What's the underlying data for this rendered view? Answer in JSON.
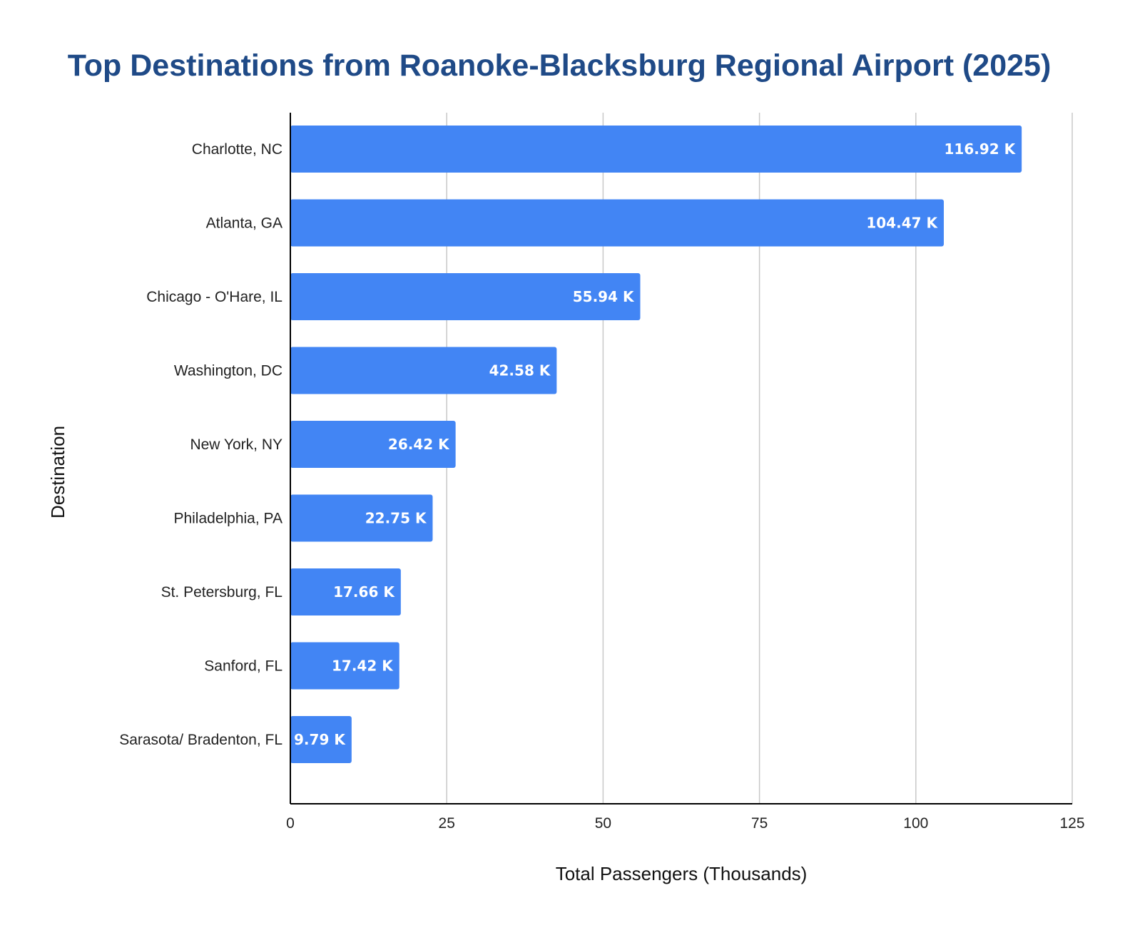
{
  "colors": {
    "title": "#1f4a87",
    "bar": "#4285f4",
    "grid": "#c8c8c8",
    "axis": "#000000",
    "data_label": "#ffffff"
  },
  "chart_data": {
    "type": "bar",
    "orientation": "horizontal",
    "title": "Top Destinations from Roanoke-Blacksburg Regional Airport (2025)",
    "xlabel": "Total Passengers (Thousands)",
    "ylabel": "Destination",
    "categories": [
      "Charlotte, NC",
      "Atlanta, GA",
      "Chicago - O'Hare, IL",
      "Washington, DC",
      "New York, NY",
      "Philadelphia, PA",
      "St. Petersburg, FL",
      "Sanford, FL",
      "Sarasota/ Bradenton, FL"
    ],
    "values": [
      116.92,
      104.47,
      55.94,
      42.58,
      26.42,
      22.75,
      17.66,
      17.42,
      9.79
    ],
    "data_labels": [
      "116.92 K",
      "104.47 K",
      "55.94 K",
      "42.58 K",
      "26.42 K",
      "22.75 K",
      "17.66 K",
      "17.42 K",
      "9.79 K"
    ],
    "xlim": [
      0,
      125
    ],
    "xticks": [
      0,
      25,
      50,
      75,
      100,
      125
    ],
    "xtick_labels": [
      "0",
      "25",
      "50",
      "75",
      "100",
      "125"
    ],
    "grid": "vertical",
    "legend": "none"
  }
}
